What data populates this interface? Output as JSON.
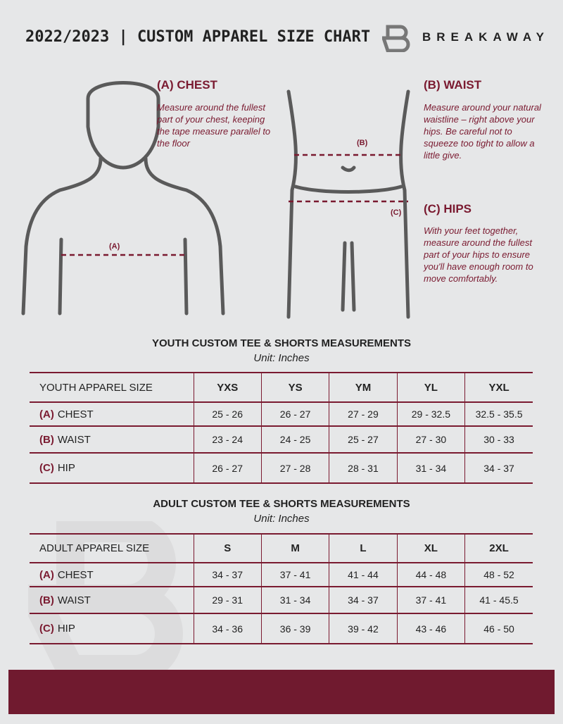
{
  "header": {
    "title": "2022/2023  |  CUSTOM APPAREL SIZE CHART",
    "brand": "BREAKAWAY"
  },
  "guide": {
    "chest": {
      "label": "(A) CHEST",
      "text": "Measure around the fullest part of your chest, keeping the tape measure parallel to the floor",
      "marker": "(A)"
    },
    "waist": {
      "label": "(B) WAIST",
      "text": "Measure around your natural waistline – right above your hips. Be careful not to squeeze too tight to allow a little give.",
      "marker": "(B)"
    },
    "hips": {
      "label": "(C) HIPS",
      "text": "With your feet together, measure around the fullest part of your hips to ensure you'll have enough room to move comfortably.",
      "marker": "(C)"
    }
  },
  "youth": {
    "title": "YOUTH CUSTOM TEE & SHORTS MEASUREMENTS",
    "unit": "Unit: Inches",
    "header": [
      "YOUTH APPAREL SIZE",
      "YXS",
      "YS",
      "YM",
      "YL",
      "YXL"
    ],
    "rows": [
      {
        "letter": "(A)",
        "name": "CHEST",
        "values": [
          "25 - 26",
          "26 - 27",
          "27 - 29",
          "29 - 32.5",
          "32.5 - 35.5"
        ]
      },
      {
        "letter": "(B)",
        "name": "WAIST",
        "values": [
          "23 - 24",
          "24 - 25",
          "25 - 27",
          "27 - 30",
          "30 - 33"
        ]
      },
      {
        "letter": "(C)",
        "name": "HIP",
        "values": [
          "26 - 27",
          "27 - 28",
          "28 - 31",
          "31 - 34",
          "34 - 37"
        ]
      }
    ]
  },
  "adult": {
    "title": "ADULT CUSTOM TEE & SHORTS MEASUREMENTS",
    "unit": "Unit: Inches",
    "header": [
      "ADULT APPAREL SIZE",
      "S",
      "M",
      "L",
      "XL",
      "2XL"
    ],
    "rows": [
      {
        "letter": "(A)",
        "name": "CHEST",
        "values": [
          "34 - 37",
          "37 - 41",
          "41 - 44",
          "44 - 48",
          "48 - 52"
        ]
      },
      {
        "letter": "(B)",
        "name": "WAIST",
        "values": [
          "29 - 31",
          "31 - 34",
          "34 - 37",
          "37 - 41",
          "41 - 45.5"
        ]
      },
      {
        "letter": "(C)",
        "name": "HIP",
        "values": [
          "34 - 36",
          "36 - 39",
          "39 - 42",
          "43 - 46",
          "46 - 50"
        ]
      }
    ]
  },
  "colors": {
    "accent": "#7a1a30",
    "background": "#e6e7e8",
    "footer": "#701a2f"
  }
}
